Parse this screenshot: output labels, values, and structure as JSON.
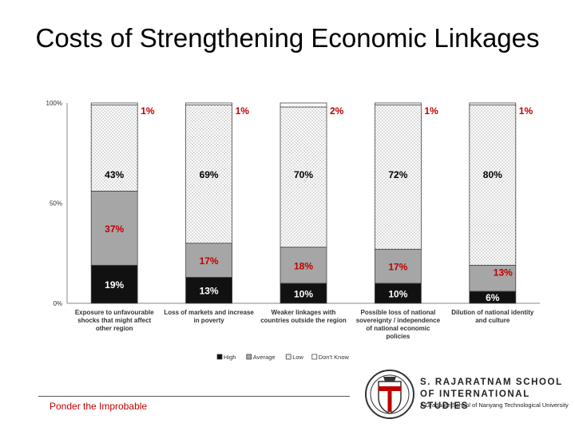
{
  "slide": {
    "title": "Costs of Strengthening Economic Linkages",
    "footer": "Ponder the Improbable"
  },
  "logo": {
    "name_line1": "S. RAJARATNAM SCHOOL",
    "name_line2": "OF INTERNATIONAL STUDIES",
    "tagline": "A Graduate School of Nanyang Technological University"
  },
  "chart_data": {
    "type": "bar",
    "stacked": true,
    "categories": [
      [
        "Exposure to unfavourable",
        "shocks that might affect",
        "other region"
      ],
      [
        "Loss of markets and increase",
        "in poverty"
      ],
      [
        "Weaker linkages with",
        "countries outside the region"
      ],
      [
        "Possible loss of national",
        "sovereignty / independence",
        "of national economic",
        "policies"
      ],
      [
        "Dilution of national identity",
        "and culture"
      ]
    ],
    "series": [
      {
        "name": "High",
        "values": [
          19,
          13,
          10,
          10,
          6
        ],
        "color": "#111111"
      },
      {
        "name": "Average",
        "values": [
          37,
          17,
          18,
          17,
          13
        ],
        "color": "#a6a6a6"
      },
      {
        "name": "Low",
        "values": [
          43,
          69,
          70,
          72,
          80
        ],
        "color": "#f2f2f2"
      },
      {
        "name": "Don't Know",
        "values": [
          1,
          1,
          2,
          1,
          1
        ],
        "color": "#ffffff"
      }
    ],
    "yticks": [
      "0%",
      "50%",
      "100%"
    ],
    "ylim": [
      0,
      100
    ],
    "legend_position": "bottom",
    "grid": false
  }
}
